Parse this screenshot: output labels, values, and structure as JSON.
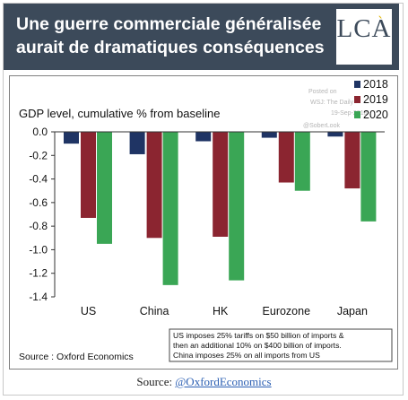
{
  "header": {
    "title_line1": "Une guerre commerciale généralisée",
    "title_line2": "aurait de dramatiques conséquences",
    "logo_text": "LCA"
  },
  "chart_data": {
    "type": "bar",
    "title": "GDP level, cumulative % from baseline",
    "categories": [
      "US",
      "China",
      "HK",
      "Eurozone",
      "Japan"
    ],
    "series": [
      {
        "name": "2018",
        "color": "#1f3464",
        "values": [
          -0.1,
          -0.19,
          -0.08,
          -0.05,
          -0.04
        ]
      },
      {
        "name": "2019",
        "color": "#8b2530",
        "values": [
          -0.73,
          -0.9,
          -0.89,
          -0.43,
          -0.48
        ]
      },
      {
        "name": "2020",
        "color": "#3aa655",
        "values": [
          -0.95,
          -1.3,
          -1.26,
          -0.5,
          -0.76
        ]
      }
    ],
    "ylim": [
      -1.4,
      0.0
    ],
    "yticks": [
      "0.0",
      "-0.2",
      "-0.4",
      "-0.6",
      "-0.8",
      "-1.0",
      "-1.2",
      "-1.4"
    ],
    "ytick_values": [
      0.0,
      -0.2,
      -0.4,
      -0.6,
      -0.8,
      -1.0,
      -1.2,
      -1.4
    ],
    "grid": false,
    "legend_position": "top-right",
    "watermark": [
      "Posted on",
      "WSJ: The Daily",
      "19-Sep-2018",
      "@SoberLook"
    ],
    "note_lines": [
      "US imposes 25% tariffs on $50 billion of imports &",
      "then an additional 10% on $400 billion of imports.",
      "China imposes 25% on all imports from US"
    ],
    "source": "Source : Oxford Economics"
  },
  "footer": {
    "source_label": "Source: ",
    "source_handle": "@OxfordEconomics"
  }
}
